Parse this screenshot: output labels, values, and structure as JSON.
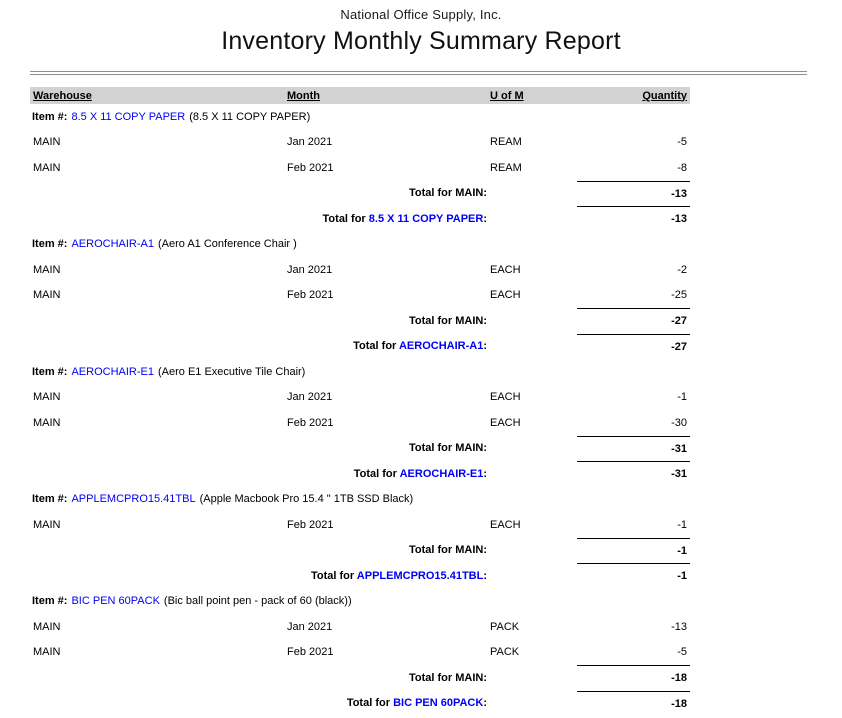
{
  "report": {
    "company": "National Office Supply, Inc.",
    "title": "Inventory Monthly Summary Report",
    "columns": {
      "warehouse": "Warehouse",
      "month": "Month",
      "uom": "U of M",
      "quantity": "Quantity"
    },
    "labels": {
      "item_prefix": "Item #:",
      "total_main": "Total for MAIN:",
      "total_for": "Total for",
      "colon": ":"
    },
    "colors": {
      "link_blue": "#0000f5",
      "header_bar_gray": "#d2d2d2"
    },
    "sections": [
      {
        "item_code": "8.5 X 11 COPY PAPER",
        "item_desc": "(8.5 X 11 COPY PAPER)",
        "rows": [
          {
            "warehouse": "MAIN",
            "month": "Jan 2021",
            "uom": "REAM",
            "qty": "-5"
          },
          {
            "warehouse": "MAIN",
            "month": "Feb 2021",
            "uom": "REAM",
            "qty": "-8"
          }
        ],
        "warehouse_total": "-13",
        "item_total": "-13"
      },
      {
        "item_code": "AEROCHAIR-A1",
        "item_desc": "(Aero A1 Conference Chair )",
        "rows": [
          {
            "warehouse": "MAIN",
            "month": "Jan 2021",
            "uom": "EACH",
            "qty": "-2"
          },
          {
            "warehouse": "MAIN",
            "month": "Feb 2021",
            "uom": "EACH",
            "qty": "-25"
          }
        ],
        "warehouse_total": "-27",
        "item_total": "-27"
      },
      {
        "item_code": "AEROCHAIR-E1",
        "item_desc": "(Aero E1 Executive Tile Chair)",
        "rows": [
          {
            "warehouse": "MAIN",
            "month": "Jan 2021",
            "uom": "EACH",
            "qty": "-1"
          },
          {
            "warehouse": "MAIN",
            "month": "Feb 2021",
            "uom": "EACH",
            "qty": "-30"
          }
        ],
        "warehouse_total": "-31",
        "item_total": "-31"
      },
      {
        "item_code": "APPLEMCPRO15.41TBL",
        "item_desc": "(Apple Macbook Pro 15.4 \" 1TB SSD Black)",
        "rows": [
          {
            "warehouse": "MAIN",
            "month": "Feb 2021",
            "uom": "EACH",
            "qty": "-1"
          }
        ],
        "warehouse_total": "-1",
        "item_total": "-1"
      },
      {
        "item_code": "BIC PEN 60PACK",
        "item_desc": "(Bic ball point pen - pack of 60 (black))",
        "rows": [
          {
            "warehouse": "MAIN",
            "month": "Jan 2021",
            "uom": "PACK",
            "qty": "-13"
          },
          {
            "warehouse": "MAIN",
            "month": "Feb 2021",
            "uom": "PACK",
            "qty": "-5"
          }
        ],
        "warehouse_total": "-18",
        "item_total": "-18"
      }
    ]
  }
}
